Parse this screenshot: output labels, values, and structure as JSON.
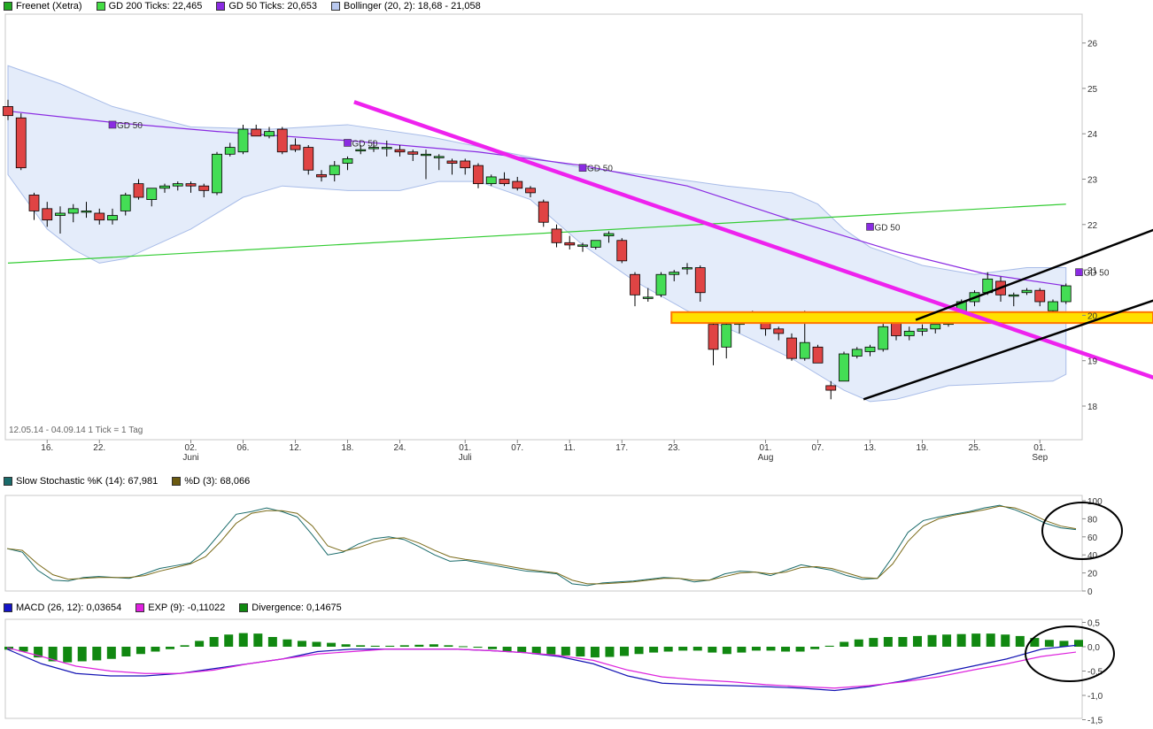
{
  "legends": {
    "price": [
      {
        "label": "Freenet (Xetra)",
        "color": "#22aa22"
      },
      {
        "label": "GD 200 Ticks: 22,465",
        "color": "#44dd44"
      },
      {
        "label": "GD 50 Ticks: 20,653",
        "color": "#8a2be2"
      },
      {
        "label": "Bollinger (20, 2): 18,68 - 21,058",
        "color": "#b9c9f0"
      }
    ],
    "stoch": [
      {
        "label": "Slow Stochastic %K (14): 67,981",
        "color": "#1a6b6b"
      },
      {
        "label": "%D (3): 68,066",
        "color": "#6b5a10"
      }
    ],
    "macd": [
      {
        "label": "MACD (26, 12): 0,03654",
        "color": "#1414c8"
      },
      {
        "label": "EXP (9): -0,11022",
        "color": "#e020e0"
      },
      {
        "label": "Divergence: 0,14675",
        "color": "#108a10"
      }
    ]
  },
  "info_text": "12.05.14 - 04.09.14   1 Tick = 1 Tag",
  "gd50_label": "GD 50",
  "colors": {
    "up": "#44dd55",
    "down": "#e04444",
    "gd200": "#33cc33",
    "gd50": "#8a2be2",
    "boll": "#e4ecfa",
    "boll_line": "#a8bce8",
    "trend": "#ee22ee",
    "channel": "#000000",
    "zone": "#ffe000",
    "zone_border": "#ff7700",
    "k": "#1a6b6b",
    "d": "#7a6a18",
    "macd": "#1414b4",
    "exp": "#dd22dd",
    "div": "#118811"
  },
  "chart_data": [
    {
      "type": "candlestick",
      "title": "Freenet (Xetra)",
      "ylim": [
        17.8,
        26.8
      ],
      "yticks": [
        18,
        19,
        20,
        21,
        22,
        23,
        24,
        25,
        26
      ],
      "x_ticks": [
        {
          "label": "16.",
          "idx": 3
        },
        {
          "label": "22.",
          "idx": 7
        },
        {
          "label": "02.",
          "sub": "Juni",
          "idx": 14
        },
        {
          "label": "06.",
          "idx": 18
        },
        {
          "label": "12.",
          "idx": 22
        },
        {
          "label": "18.",
          "idx": 26
        },
        {
          "label": "24.",
          "idx": 30
        },
        {
          "label": "01.",
          "sub": "Juli",
          "idx": 35
        },
        {
          "label": "07.",
          "idx": 39
        },
        {
          "label": "11.",
          "idx": 43
        },
        {
          "label": "17.",
          "idx": 47
        },
        {
          "label": "23.",
          "idx": 51
        },
        {
          "label": "01.",
          "sub": "Aug",
          "idx": 58
        },
        {
          "label": "07.",
          "idx": 62
        },
        {
          "label": "13.",
          "idx": 66
        },
        {
          "label": "19.",
          "idx": 70
        },
        {
          "label": "25.",
          "idx": 74
        },
        {
          "label": "01.",
          "sub": "Sep",
          "idx": 79
        }
      ],
      "candles": [
        [
          24.6,
          24.75,
          24.3,
          24.4
        ],
        [
          24.35,
          24.45,
          23.2,
          23.25
        ],
        [
          22.65,
          22.7,
          22.1,
          22.3
        ],
        [
          22.35,
          22.5,
          21.95,
          22.1
        ],
        [
          22.2,
          22.4,
          21.8,
          22.25
        ],
        [
          22.25,
          22.45,
          22.05,
          22.35
        ],
        [
          22.3,
          22.5,
          22.15,
          22.3
        ],
        [
          22.25,
          22.35,
          22.0,
          22.1
        ],
        [
          22.1,
          22.35,
          22.0,
          22.2
        ],
        [
          22.3,
          22.7,
          22.2,
          22.65
        ],
        [
          22.9,
          23.0,
          22.55,
          22.6
        ],
        [
          22.55,
          22.8,
          22.4,
          22.8
        ],
        [
          22.8,
          22.9,
          22.7,
          22.85
        ],
        [
          22.85,
          22.95,
          22.75,
          22.9
        ],
        [
          22.9,
          22.95,
          22.7,
          22.85
        ],
        [
          22.85,
          22.9,
          22.6,
          22.75
        ],
        [
          22.7,
          23.6,
          22.65,
          23.55
        ],
        [
          23.55,
          23.8,
          23.5,
          23.7
        ],
        [
          23.6,
          24.2,
          23.55,
          24.1
        ],
        [
          24.1,
          24.2,
          23.95,
          23.95
        ],
        [
          23.95,
          24.15,
          23.9,
          24.05
        ],
        [
          24.1,
          24.15,
          23.55,
          23.6
        ],
        [
          23.75,
          23.9,
          23.6,
          23.65
        ],
        [
          23.7,
          23.75,
          23.1,
          23.2
        ],
        [
          23.1,
          23.2,
          22.95,
          23.05
        ],
        [
          23.1,
          23.4,
          22.95,
          23.3
        ],
        [
          23.35,
          23.5,
          23.2,
          23.45
        ],
        [
          23.65,
          23.75,
          23.55,
          23.65
        ],
        [
          23.7,
          23.85,
          23.6,
          23.7
        ],
        [
          23.7,
          23.85,
          23.5,
          23.7
        ],
        [
          23.65,
          23.75,
          23.5,
          23.6
        ],
        [
          23.6,
          23.65,
          23.4,
          23.55
        ],
        [
          23.55,
          23.65,
          23.0,
          23.55
        ],
        [
          23.5,
          23.55,
          23.2,
          23.5
        ],
        [
          23.4,
          23.45,
          23.1,
          23.35
        ],
        [
          23.4,
          23.45,
          23.1,
          23.25
        ],
        [
          23.3,
          23.35,
          22.8,
          22.9
        ],
        [
          22.9,
          23.1,
          22.85,
          23.05
        ],
        [
          23.0,
          23.15,
          22.85,
          22.9
        ],
        [
          22.95,
          23.05,
          22.75,
          22.8
        ],
        [
          22.8,
          22.85,
          22.6,
          22.7
        ],
        [
          22.5,
          22.55,
          21.95,
          22.05
        ],
        [
          21.9,
          22.0,
          21.5,
          21.6
        ],
        [
          21.6,
          21.75,
          21.45,
          21.55
        ],
        [
          21.55,
          21.6,
          21.4,
          21.55
        ],
        [
          21.5,
          21.65,
          21.45,
          21.65
        ],
        [
          21.75,
          21.85,
          21.6,
          21.8
        ],
        [
          21.65,
          21.7,
          21.15,
          21.2
        ],
        [
          20.9,
          20.95,
          20.2,
          20.45
        ],
        [
          20.4,
          20.6,
          20.3,
          20.4
        ],
        [
          20.45,
          20.95,
          20.4,
          20.9
        ],
        [
          20.9,
          21.0,
          20.75,
          20.95
        ],
        [
          21.05,
          21.15,
          20.9,
          21.05
        ],
        [
          21.05,
          21.1,
          20.3,
          20.5
        ],
        [
          19.8,
          19.85,
          18.9,
          19.25
        ],
        [
          19.3,
          19.85,
          19.05,
          19.8
        ],
        [
          19.8,
          20.05,
          19.6,
          19.9
        ],
        [
          19.95,
          20.1,
          19.85,
          19.9
        ],
        [
          19.85,
          20.0,
          19.55,
          19.7
        ],
        [
          19.7,
          19.75,
          19.45,
          19.6
        ],
        [
          19.5,
          19.6,
          19.0,
          19.05
        ],
        [
          19.05,
          20.1,
          19.0,
          19.4
        ],
        [
          19.3,
          19.35,
          18.95,
          18.95
        ],
        [
          18.45,
          18.55,
          18.15,
          18.35
        ],
        [
          18.55,
          19.2,
          18.55,
          19.15
        ],
        [
          19.1,
          19.3,
          19.05,
          19.25
        ],
        [
          19.2,
          19.35,
          19.1,
          19.3
        ],
        [
          19.25,
          19.85,
          19.2,
          19.75
        ],
        [
          19.85,
          20.05,
          19.45,
          19.55
        ],
        [
          19.55,
          19.75,
          19.45,
          19.65
        ],
        [
          19.65,
          19.8,
          19.55,
          19.7
        ],
        [
          19.7,
          19.8,
          19.6,
          19.8
        ],
        [
          19.8,
          19.95,
          19.75,
          19.9
        ],
        [
          19.95,
          20.35,
          19.9,
          20.3
        ],
        [
          20.3,
          20.55,
          20.2,
          20.5
        ],
        [
          20.5,
          20.95,
          20.45,
          20.8
        ],
        [
          20.75,
          20.85,
          20.3,
          20.45
        ],
        [
          20.45,
          20.5,
          20.2,
          20.45
        ],
        [
          20.5,
          20.6,
          20.45,
          20.55
        ],
        [
          20.55,
          20.6,
          20.2,
          20.3
        ],
        [
          20.1,
          20.35,
          20.05,
          20.3
        ],
        [
          20.3,
          20.7,
          20.25,
          20.65
        ]
      ],
      "gd200": [
        [
          0,
          21.15
        ],
        [
          81,
          22.45
        ]
      ],
      "gd50": [
        [
          0,
          24.5
        ],
        [
          8,
          24.25
        ],
        [
          16,
          24.05
        ],
        [
          26,
          23.85
        ],
        [
          36,
          23.6
        ],
        [
          44,
          23.3
        ],
        [
          52,
          22.85
        ],
        [
          60,
          22.1
        ],
        [
          68,
          21.4
        ],
        [
          75,
          20.9
        ],
        [
          81,
          20.65
        ]
      ],
      "gd50_markers": [
        [
          8,
          24.2
        ],
        [
          26,
          23.8
        ],
        [
          44,
          23.25
        ],
        [
          66,
          21.95
        ],
        [
          82,
          20.95
        ]
      ],
      "bollinger_upper": [
        [
          0,
          25.5
        ],
        [
          4,
          25.1
        ],
        [
          8,
          24.6
        ],
        [
          14,
          24.15
        ],
        [
          20,
          24.1
        ],
        [
          26,
          24.2
        ],
        [
          32,
          23.95
        ],
        [
          38,
          23.6
        ],
        [
          44,
          23.25
        ],
        [
          50,
          23.05
        ],
        [
          55,
          22.85
        ],
        [
          60,
          22.7
        ],
        [
          62,
          22.45
        ],
        [
          64,
          21.9
        ],
        [
          66,
          21.5
        ],
        [
          70,
          21.1
        ],
        [
          74,
          20.9
        ],
        [
          78,
          21.05
        ],
        [
          81,
          21.05
        ]
      ],
      "bollinger_lower": [
        [
          0,
          23.1
        ],
        [
          3,
          21.9
        ],
        [
          5,
          21.45
        ],
        [
          7,
          21.15
        ],
        [
          9,
          21.25
        ],
        [
          14,
          21.9
        ],
        [
          18,
          22.6
        ],
        [
          21,
          22.85
        ],
        [
          26,
          22.75
        ],
        [
          30,
          22.75
        ],
        [
          33,
          22.95
        ],
        [
          36,
          22.95
        ],
        [
          40,
          22.55
        ],
        [
          44,
          21.55
        ],
        [
          48,
          20.75
        ],
        [
          52,
          20.1
        ],
        [
          56,
          19.6
        ],
        [
          60,
          19.05
        ],
        [
          64,
          18.35
        ],
        [
          66,
          18.1
        ],
        [
          68,
          18.15
        ],
        [
          72,
          18.45
        ],
        [
          76,
          18.5
        ],
        [
          80,
          18.55
        ],
        [
          81,
          18.7
        ]
      ],
      "trendline": [
        [
          26.5,
          24.7
        ],
        [
          90,
          18.4
        ]
      ],
      "channel_upper": [
        [
          69.5,
          19.9
        ],
        [
          92,
          22.35
        ]
      ],
      "channel_lower": [
        [
          65.5,
          18.15
        ],
        [
          92,
          20.75
        ]
      ],
      "zone": [
        19.85,
        20.05
      ],
      "zone_start_idx": 51
    },
    {
      "type": "line",
      "title": "Slow Stochastic",
      "ylim": [
        0,
        100
      ],
      "yticks": [
        0,
        20,
        40,
        60,
        80,
        100
      ],
      "series": [
        {
          "name": "Slow Stochastic %K (14): 67,981",
          "values": [
            47,
            43,
            23,
            12,
            11,
            15,
            16,
            15,
            14,
            19,
            25,
            28,
            31,
            45,
            65,
            85,
            88,
            92,
            88,
            82,
            62,
            40,
            43,
            52,
            58,
            60,
            57,
            49,
            40,
            33,
            34,
            31,
            28,
            25,
            22,
            21,
            19,
            8,
            6,
            9,
            10,
            11,
            13,
            15,
            14,
            10,
            12,
            19,
            22,
            21,
            17,
            23,
            29,
            26,
            23,
            17,
            13,
            14,
            38,
            65,
            78,
            82,
            85,
            88,
            92,
            95,
            90,
            83,
            75,
            70,
            68
          ]
        },
        {
          "name": "%D (3): 68,066",
          "values": [
            47,
            45,
            30,
            18,
            13,
            14,
            15,
            15,
            15,
            17,
            22,
            26,
            30,
            38,
            55,
            75,
            86,
            89,
            89,
            86,
            72,
            50,
            44,
            48,
            54,
            58,
            59,
            53,
            45,
            38,
            35,
            33,
            30,
            27,
            24,
            22,
            20,
            12,
            8,
            8,
            9,
            10,
            12,
            14,
            14,
            12,
            12,
            16,
            20,
            21,
            19,
            21,
            26,
            27,
            25,
            20,
            15,
            14,
            30,
            55,
            72,
            80,
            84,
            87,
            90,
            94,
            92,
            86,
            78,
            72,
            69
          ]
        }
      ]
    },
    {
      "type": "bar+line",
      "title": "MACD",
      "ylim": [
        -1.5,
        0.5
      ],
      "yticks": [
        {
          "v": 0.5,
          "label": "0,5"
        },
        {
          "v": 0,
          "label": "0,0"
        },
        {
          "v": -0.5,
          "label": "-0,5"
        },
        {
          "v": -1,
          "label": "-1,0"
        },
        {
          "v": -1.5,
          "label": "-1,5"
        }
      ],
      "series": [
        {
          "name": "MACD (26, 12): 0,03654",
          "values": [
            -0.05,
            -0.35,
            -0.55,
            -0.6,
            -0.6,
            -0.55,
            -0.45,
            -0.35,
            -0.25,
            -0.1,
            -0.05,
            -0.05,
            -0.05,
            -0.05,
            -0.08,
            -0.12,
            -0.2,
            -0.35,
            -0.6,
            -0.75,
            -0.78,
            -0.8,
            -0.82,
            -0.85,
            -0.9,
            -0.82,
            -0.7,
            -0.55,
            -0.4,
            -0.25,
            -0.05,
            0.03
          ]
        },
        {
          "name": "EXP (9): -0,11022",
          "values": [
            -0.02,
            -0.2,
            -0.4,
            -0.5,
            -0.55,
            -0.55,
            -0.48,
            -0.35,
            -0.25,
            -0.15,
            -0.1,
            -0.05,
            -0.05,
            -0.05,
            -0.08,
            -0.12,
            -0.18,
            -0.28,
            -0.48,
            -0.62,
            -0.68,
            -0.72,
            -0.78,
            -0.82,
            -0.85,
            -0.8,
            -0.72,
            -0.62,
            -0.48,
            -0.35,
            -0.2,
            -0.11
          ]
        }
      ],
      "divergence": [
        -0.06,
        -0.1,
        -0.22,
        -0.3,
        -0.32,
        -0.3,
        -0.28,
        -0.25,
        -0.2,
        -0.15,
        -0.1,
        -0.05,
        0.03,
        0.12,
        0.2,
        0.25,
        0.28,
        0.27,
        0.2,
        0.15,
        0.12,
        0.1,
        0.08,
        0.05,
        0.03,
        0.02,
        0.02,
        0.03,
        0.04,
        0.05,
        0.03,
        0.01,
        -0.02,
        -0.05,
        -0.1,
        -0.12,
        -0.15,
        -0.16,
        -0.18,
        -0.2,
        -0.22,
        -0.21,
        -0.19,
        -0.15,
        -0.12,
        -0.1,
        -0.08,
        -0.08,
        -0.12,
        -0.15,
        -0.12,
        -0.08,
        -0.08,
        -0.1,
        -0.1,
        -0.05,
        0.02,
        0.1,
        0.15,
        0.18,
        0.2,
        0.2,
        0.22,
        0.24,
        0.25,
        0.26,
        0.27,
        0.27,
        0.25,
        0.22,
        0.18,
        0.14,
        0.12,
        0.14
      ]
    }
  ]
}
